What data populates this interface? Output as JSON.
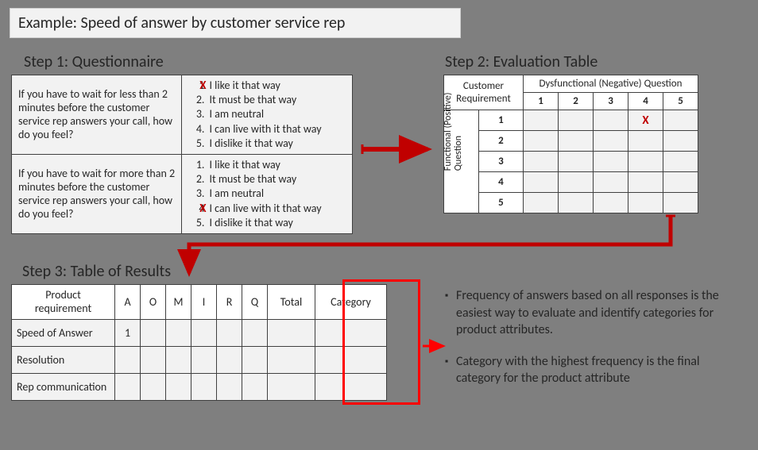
{
  "title": "Example: Speed of answer by customer service rep",
  "colors": {
    "page_bg": "#7f7f7f",
    "panel_bg": "#f2f2f2",
    "border": "#404040",
    "cell_bg": "#f2f2f2",
    "text": "#262626",
    "mark_red": "#c00000",
    "highlight_red": "#ff0000",
    "arrow": "#c00000"
  },
  "step_labels": {
    "s1": "Step 1: Questionnaire",
    "s2": "Step 2: Evaluation Table",
    "s3": "Step 3: Table of Results"
  },
  "questionnaire": {
    "questions": [
      "If you have to wait for less than 2 minutes before the customer service rep answers your call, how do you feel?",
      "If you have to wait for more than 2 minutes before the customer service rep answers your call, how do you feel?"
    ],
    "options": [
      "I like it that way",
      "It must be that way",
      "I am neutral",
      "I can live with it that way",
      "I dislike it that way"
    ],
    "selected": [
      1,
      4
    ]
  },
  "evaluation": {
    "corner": "Customer Requirement",
    "top_header": "Dysfunctional (Negative) Question",
    "left_header": "Functional (Positive) Question",
    "cols": [
      "1",
      "2",
      "3",
      "4",
      "5"
    ],
    "rows": [
      "1",
      "2",
      "3",
      "4",
      "5"
    ],
    "mark": {
      "row": 1,
      "col": 4,
      "glyph": "X"
    }
  },
  "results": {
    "headers": {
      "product": "Product requirement",
      "cols": [
        "A",
        "O",
        "M",
        "I",
        "R",
        "Q"
      ],
      "total": "Total",
      "category": "Category"
    },
    "rows": [
      {
        "label": "Speed of Answer",
        "vals": [
          "1",
          "",
          "",
          "",
          "",
          "",
          ""
        ],
        "category": ""
      },
      {
        "label": "Resolution",
        "vals": [
          "",
          "",
          "",
          "",
          "",
          "",
          ""
        ],
        "category": ""
      },
      {
        "label": "Rep communication",
        "vals": [
          "",
          "",
          "",
          "",
          "",
          "",
          ""
        ],
        "category": ""
      }
    ]
  },
  "bullets": [
    "Frequency of answers based on all responses is the easiest way to evaluate and identify categories for product attributes.",
    "Category with the highest frequency is the final category for the product attribute"
  ]
}
